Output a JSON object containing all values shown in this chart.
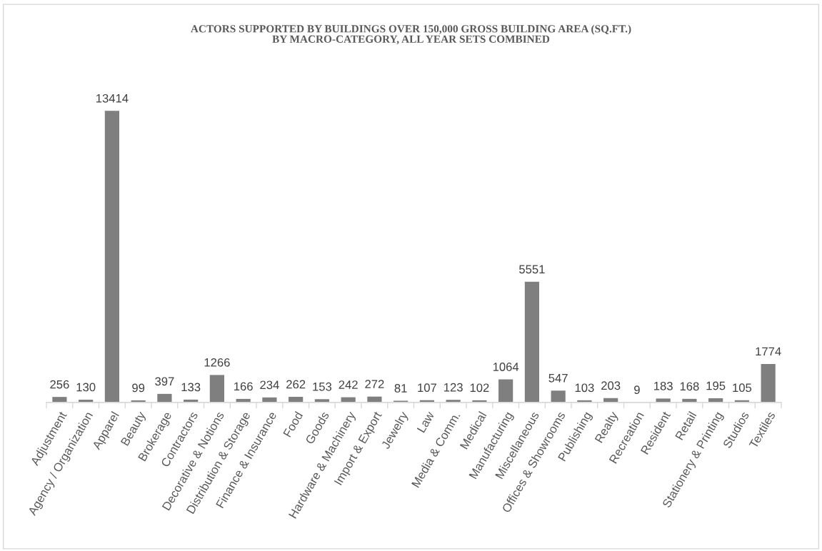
{
  "chart_data": {
    "type": "bar",
    "title": "ACTORS SUPPORTED BY BUILDINGS OVER 150,000 GROSS BUILDING AREA (SQ.FT.)\nBY MACRO-CATEGORY, ALL YEAR SETS COMBINED",
    "categories": [
      "Adjustment",
      "Agency / Organization",
      "Apparel",
      "Beauty",
      "Brokerage",
      "Contractors",
      "Decorative & Notions",
      "Distribution & Storage",
      "Finance & Insurance",
      "Food",
      "Goods",
      "Hardware & Machinery",
      "Import & Export",
      "Jewelry",
      "Law",
      "Media & Comm.",
      "Medical",
      "Manufacturing",
      "Miscellaneous",
      "Offices & Showrooms",
      "Publishing",
      "Realty",
      "Recreation",
      "Resident",
      "Retail",
      "Stationery & Printing",
      "Studios",
      "Textiles"
    ],
    "values": [
      256,
      130,
      13414,
      99,
      397,
      133,
      1266,
      166,
      234,
      262,
      153,
      242,
      272,
      81,
      107,
      123,
      102,
      1064,
      5551,
      547,
      103,
      203,
      9,
      183,
      168,
      195,
      105,
      1774
    ],
    "color": "#7f7f7f",
    "data_labels": true,
    "tick_labels": "x"
  }
}
